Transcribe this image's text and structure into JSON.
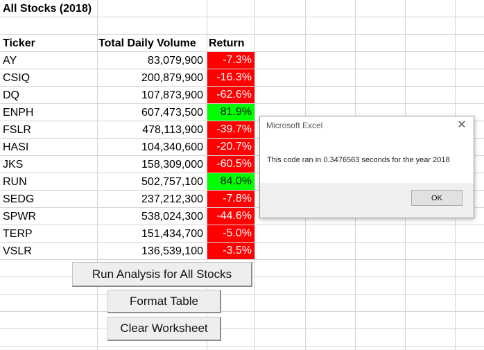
{
  "sheet": {
    "title": "All Stocks (2018)",
    "headers": {
      "ticker": "Ticker",
      "volume": "Total Daily Volume",
      "return": "Return"
    },
    "rows": [
      {
        "ticker": "AY",
        "volume": "83,079,900",
        "return": "-7.3%",
        "positive": false
      },
      {
        "ticker": "CSIQ",
        "volume": "200,879,900",
        "return": "-16.3%",
        "positive": false
      },
      {
        "ticker": "DQ",
        "volume": "107,873,900",
        "return": "-62.6%",
        "positive": false
      },
      {
        "ticker": "ENPH",
        "volume": "607,473,500",
        "return": "81.9%",
        "positive": true
      },
      {
        "ticker": "FSLR",
        "volume": "478,113,900",
        "return": "-39.7%",
        "positive": false
      },
      {
        "ticker": "HASI",
        "volume": "104,340,600",
        "return": "-20.7%",
        "positive": false
      },
      {
        "ticker": "JKS",
        "volume": "158,309,000",
        "return": "-60.5%",
        "positive": false
      },
      {
        "ticker": "RUN",
        "volume": "502,757,100",
        "return": "84.0%",
        "positive": true
      },
      {
        "ticker": "SEDG",
        "volume": "237,212,300",
        "return": "-7.8%",
        "positive": false
      },
      {
        "ticker": "SPWR",
        "volume": "538,024,300",
        "return": "-44.6%",
        "positive": false
      },
      {
        "ticker": "TERP",
        "volume": "151,434,700",
        "return": "-5.0%",
        "positive": false
      },
      {
        "ticker": "VSLR",
        "volume": "136,539,100",
        "return": "-3.5%",
        "positive": false
      }
    ]
  },
  "buttons": {
    "run_analysis": "Run Analysis for All Stocks",
    "format_table": "Format Table",
    "clear_worksheet": "Clear Worksheet"
  },
  "dialog": {
    "title": "Microsoft Excel",
    "close_icon": "close-icon",
    "message": "This code ran in 0.3476563 seconds for the year 2018",
    "ok_label": "OK"
  },
  "colors": {
    "positive": "#00ff00",
    "negative": "#ff0000",
    "gridline": "#d4d4d4"
  }
}
